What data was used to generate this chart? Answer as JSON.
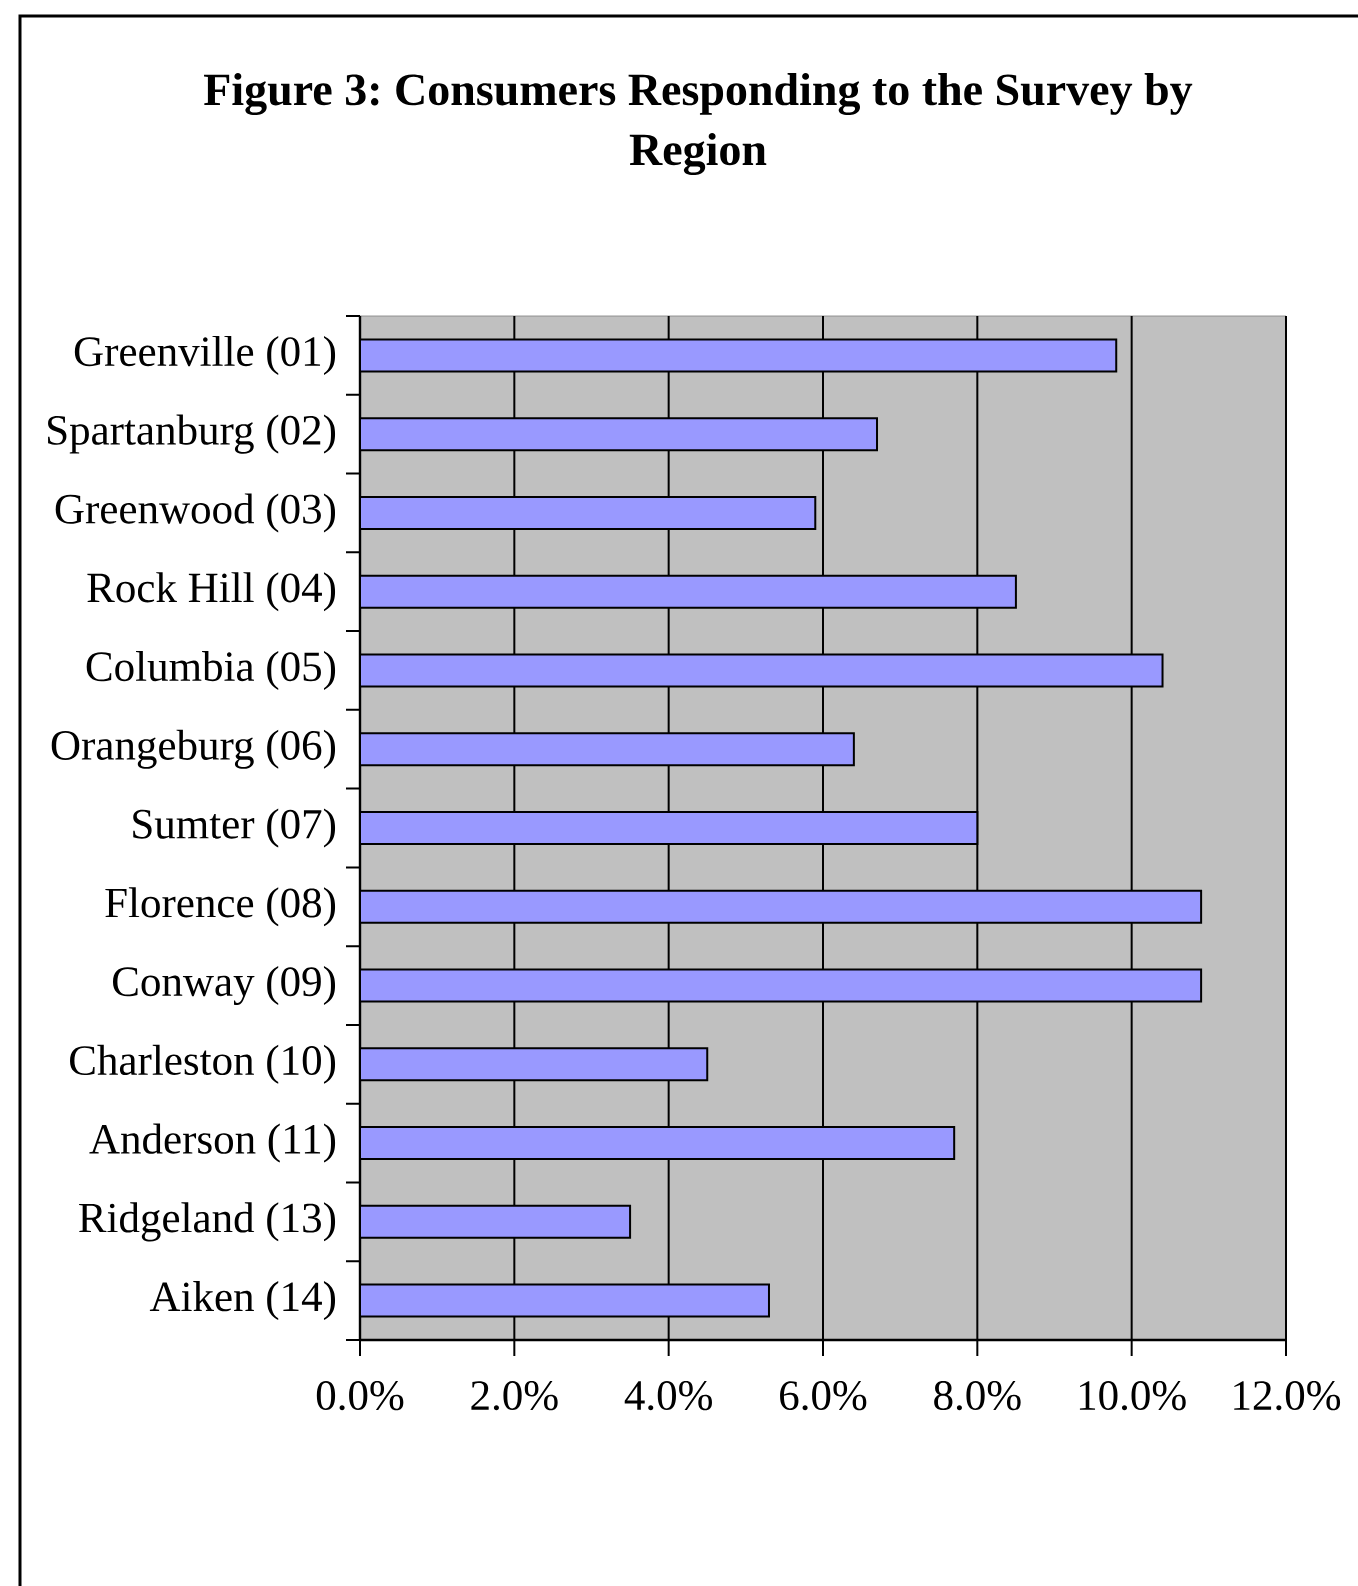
{
  "chart_data": {
    "type": "bar",
    "orientation": "horizontal",
    "title": "Figure 3: Consumers Responding to the Survey by Region",
    "categories": [
      "Greenville (01)",
      "Spartanburg (02)",
      "Greenwood (03)",
      "Rock Hill (04)",
      "Columbia (05)",
      "Orangeburg (06)",
      "Sumter (07)",
      "Florence (08)",
      "Conway (09)",
      "Charleston (10)",
      "Anderson (11)",
      "Ridgeland (13)",
      "Aiken (14)"
    ],
    "values": [
      9.8,
      6.7,
      5.9,
      8.5,
      10.4,
      6.4,
      8.0,
      10.9,
      10.9,
      4.5,
      7.7,
      3.5,
      5.3
    ],
    "color": "#9999ff",
    "xlim": [
      0,
      12
    ],
    "xticks": [
      {
        "value": 0,
        "label": "0.0%"
      },
      {
        "value": 2,
        "label": "2.0%"
      },
      {
        "value": 4,
        "label": "4.0%"
      },
      {
        "value": 6,
        "label": "6.0%"
      },
      {
        "value": 8,
        "label": "8.0%"
      },
      {
        "value": 10,
        "label": "10.0%"
      },
      {
        "value": 12,
        "label": "12.0%"
      }
    ],
    "grid": "x"
  }
}
